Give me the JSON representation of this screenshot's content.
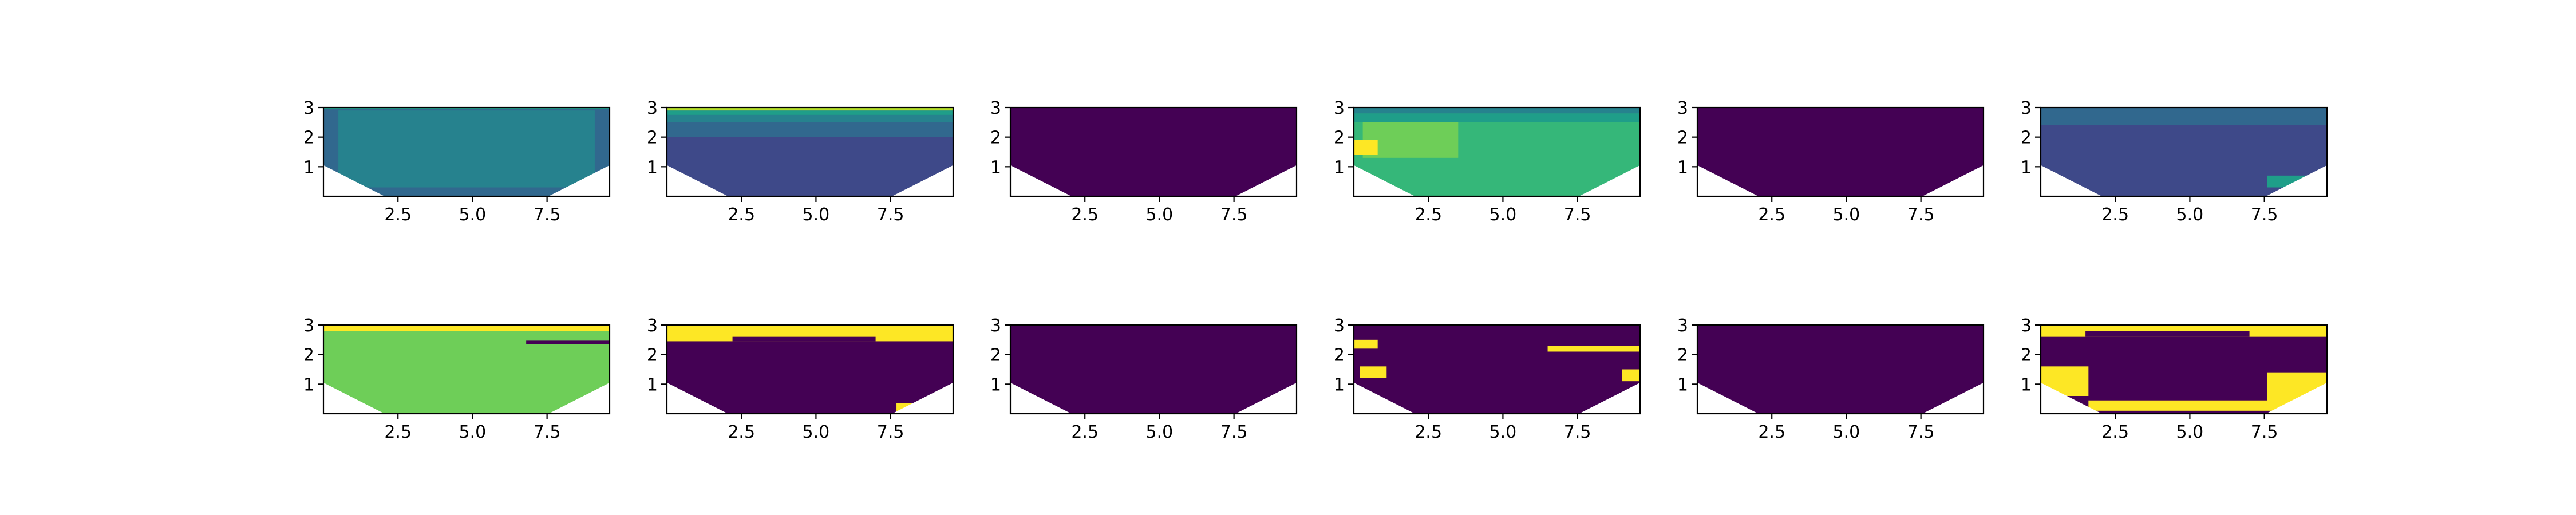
{
  "figure": {
    "rows": 2,
    "cols": 6
  },
  "colors": {
    "viridis": [
      "#440154",
      "#482878",
      "#3e4989",
      "#31688e",
      "#26828e",
      "#1f9e89",
      "#35b779",
      "#6ece58",
      "#b5de2b",
      "#fde725"
    ],
    "mask": "#ffffff",
    "axis": "#000000"
  },
  "chart_data": [
    {
      "panel": 1,
      "type": "heatmap",
      "title": "",
      "xlabel": "",
      "ylabel": "",
      "xlim": [
        0,
        9.6
      ],
      "ylim": [
        0,
        3
      ],
      "xticks": [
        "2.5",
        "5.0",
        "7.5"
      ],
      "yticks": [
        "1",
        "2",
        "3"
      ],
      "layers": [
        {
          "level": 3,
          "rect": [
            0,
            0,
            9.6,
            3
          ]
        },
        {
          "level": 4,
          "rect": [
            0.5,
            0.3,
            8.6,
            2.6
          ]
        },
        {
          "level": 5,
          "rect": [
            0,
            2.95,
            9.6,
            0.05
          ]
        }
      ]
    },
    {
      "panel": 2,
      "type": "heatmap",
      "title": "",
      "xlabel": "",
      "ylabel": "",
      "xlim": [
        0,
        9.6
      ],
      "ylim": [
        0,
        3
      ],
      "xticks": [
        "2.5",
        "5.0",
        "7.5"
      ],
      "yticks": [
        "1",
        "2",
        "3"
      ],
      "layers": [
        {
          "level": 2,
          "rect": [
            0,
            0,
            9.6,
            3
          ]
        },
        {
          "level": 3,
          "rect": [
            0,
            2.0,
            9.6,
            0.5
          ]
        },
        {
          "level": 4,
          "rect": [
            0,
            2.5,
            9.6,
            0.25
          ]
        },
        {
          "level": 5,
          "rect": [
            0,
            2.75,
            9.6,
            0.15
          ]
        },
        {
          "level": 8,
          "rect": [
            0,
            2.9,
            9.6,
            0.1
          ]
        }
      ]
    },
    {
      "panel": 3,
      "type": "heatmap",
      "title": "",
      "xlabel": "",
      "ylabel": "",
      "xlim": [
        0,
        9.6
      ],
      "ylim": [
        0,
        3
      ],
      "xticks": [
        "2.5",
        "5.0",
        "7.5"
      ],
      "yticks": [
        "1",
        "2",
        "3"
      ],
      "layers": [
        {
          "level": 0,
          "rect": [
            0,
            0,
            9.6,
            3
          ]
        }
      ]
    },
    {
      "panel": 4,
      "type": "heatmap",
      "title": "",
      "xlabel": "",
      "ylabel": "",
      "xlim": [
        0,
        9.6
      ],
      "ylim": [
        0,
        3
      ],
      "xticks": [
        "2.5",
        "5.0",
        "7.5"
      ],
      "yticks": [
        "1",
        "2",
        "3"
      ],
      "layers": [
        {
          "level": 6,
          "rect": [
            0,
            0,
            9.6,
            3
          ]
        },
        {
          "level": 7,
          "rect": [
            0.3,
            1.3,
            3.2,
            1.2
          ]
        },
        {
          "level": 5,
          "rect": [
            0,
            2.5,
            9.6,
            0.3
          ]
        },
        {
          "level": 4,
          "rect": [
            0,
            2.8,
            9.6,
            0.2
          ]
        },
        {
          "level": 9,
          "rect": [
            0,
            1.4,
            0.8,
            0.5
          ]
        }
      ]
    },
    {
      "panel": 5,
      "type": "heatmap",
      "title": "",
      "xlabel": "",
      "ylabel": "",
      "xlim": [
        0,
        9.6
      ],
      "ylim": [
        0,
        3
      ],
      "xticks": [
        "2.5",
        "5.0",
        "7.5"
      ],
      "yticks": [
        "1",
        "2",
        "3"
      ],
      "layers": [
        {
          "level": 0,
          "rect": [
            0,
            0,
            9.6,
            3
          ]
        }
      ]
    },
    {
      "panel": 6,
      "type": "heatmap",
      "title": "",
      "xlabel": "",
      "ylabel": "",
      "xlim": [
        0,
        9.6
      ],
      "ylim": [
        0,
        3
      ],
      "xticks": [
        "2.5",
        "5.0",
        "7.5"
      ],
      "yticks": [
        "1",
        "2",
        "3"
      ],
      "layers": [
        {
          "level": 2,
          "rect": [
            0,
            0,
            9.6,
            3
          ]
        },
        {
          "level": 3,
          "rect": [
            0,
            2.4,
            9.6,
            0.6
          ]
        },
        {
          "level": 5,
          "rect": [
            7.6,
            0.3,
            2.0,
            0.4
          ]
        }
      ]
    },
    {
      "panel": 7,
      "type": "heatmap",
      "title": "",
      "xlabel": "",
      "ylabel": "",
      "xlim": [
        0,
        9.6
      ],
      "ylim": [
        0,
        3
      ],
      "xticks": [
        "2.5",
        "5.0",
        "7.5"
      ],
      "yticks": [
        "1",
        "2",
        "3"
      ],
      "layers": [
        {
          "level": 7,
          "rect": [
            0,
            0,
            9.6,
            3
          ]
        },
        {
          "level": 9,
          "rect": [
            0,
            2.8,
            9.6,
            0.2
          ]
        },
        {
          "level": 0,
          "rect": [
            6.8,
            2.35,
            2.8,
            0.12
          ]
        }
      ]
    },
    {
      "panel": 8,
      "type": "heatmap",
      "title": "",
      "xlabel": "",
      "ylabel": "",
      "xlim": [
        0,
        9.6
      ],
      "ylim": [
        0,
        3
      ],
      "xticks": [
        "2.5",
        "5.0",
        "7.5"
      ],
      "yticks": [
        "1",
        "2",
        "3"
      ],
      "layers": [
        {
          "level": 0,
          "rect": [
            0,
            0,
            9.6,
            3
          ]
        },
        {
          "level": 9,
          "rect": [
            0,
            2.45,
            9.6,
            0.55
          ]
        },
        {
          "level": 0,
          "rect": [
            2.2,
            2.45,
            4.8,
            0.15
          ]
        },
        {
          "level": 9,
          "rect": [
            7.7,
            0,
            1.9,
            0.35
          ]
        }
      ]
    },
    {
      "panel": 9,
      "type": "heatmap",
      "title": "",
      "xlabel": "",
      "ylabel": "",
      "xlim": [
        0,
        9.6
      ],
      "ylim": [
        0,
        3
      ],
      "xticks": [
        "2.5",
        "5.0",
        "7.5"
      ],
      "yticks": [
        "1",
        "2",
        "3"
      ],
      "layers": [
        {
          "level": 0,
          "rect": [
            0,
            0,
            9.6,
            3
          ]
        }
      ]
    },
    {
      "panel": 10,
      "type": "heatmap",
      "title": "",
      "xlabel": "",
      "ylabel": "",
      "xlim": [
        0,
        9.6
      ],
      "ylim": [
        0,
        3
      ],
      "xticks": [
        "2.5",
        "5.0",
        "7.5"
      ],
      "yticks": [
        "1",
        "2",
        "3"
      ],
      "layers": [
        {
          "level": 0,
          "rect": [
            0,
            0,
            9.6,
            3
          ]
        },
        {
          "level": 9,
          "rect": [
            0,
            2.2,
            0.8,
            0.3
          ]
        },
        {
          "level": 9,
          "rect": [
            0.2,
            1.2,
            0.9,
            0.4
          ]
        },
        {
          "level": 9,
          "rect": [
            6.5,
            2.1,
            3.1,
            0.2
          ]
        },
        {
          "level": 9,
          "rect": [
            9.0,
            1.1,
            0.6,
            0.4
          ]
        }
      ]
    },
    {
      "panel": 11,
      "type": "heatmap",
      "title": "",
      "xlabel": "",
      "ylabel": "",
      "xlim": [
        0,
        9.6
      ],
      "ylim": [
        0,
        3
      ],
      "xticks": [
        "2.5",
        "5.0",
        "7.5"
      ],
      "yticks": [
        "1",
        "2",
        "3"
      ],
      "layers": [
        {
          "level": 0,
          "rect": [
            0,
            0,
            9.6,
            3
          ]
        }
      ]
    },
    {
      "panel": 12,
      "type": "heatmap",
      "title": "",
      "xlabel": "",
      "ylabel": "",
      "xlim": [
        0,
        9.6
      ],
      "ylim": [
        0,
        3
      ],
      "xticks": [
        "2.5",
        "5.0",
        "7.5"
      ],
      "yticks": [
        "1",
        "2",
        "3"
      ],
      "layers": [
        {
          "level": 0,
          "rect": [
            0,
            0,
            9.6,
            3
          ]
        },
        {
          "level": 9,
          "rect": [
            0,
            2.6,
            9.6,
            0.4
          ]
        },
        {
          "level": 0,
          "rect": [
            1.5,
            2.6,
            5.5,
            0.2
          ]
        },
        {
          "level": 9,
          "rect": [
            0,
            0.6,
            1.6,
            1.0
          ]
        },
        {
          "level": 9,
          "rect": [
            1.6,
            0.1,
            6.0,
            0.35
          ]
        },
        {
          "level": 9,
          "rect": [
            7.6,
            0.1,
            2.0,
            1.3
          ]
        }
      ]
    }
  ]
}
